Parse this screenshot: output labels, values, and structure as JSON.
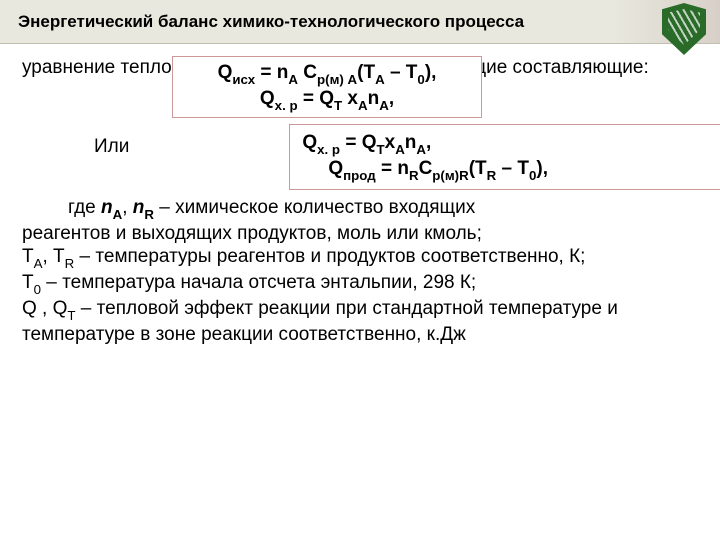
{
  "header": {
    "title": "Энергетический баланс химико-технологического процесса"
  },
  "intro": {
    "line": "уравнение теплового баланса будет иметь следующие составляющие:"
  },
  "eqbox1": {
    "line1_html": "Q<span class='sub'>исх</span> = n<span class='sub'>А</span> С<span class='sub'>р(м) А</span>(T<span class='sub'>А</span> – T<span class='sub'>0</span>),",
    "line2_html": "Q<span class='sub'>х. р</span> = Q<span class='sub'>T</span> x<span class='sub'>А</span>n<span class='sub'>А</span>,"
  },
  "or_label": "Или",
  "eqbox2": {
    "line1_html": "Q<span class='sub'>х. р</span> = Q<span class='sub'>T</span>x<span class='sub'>А</span>n<span class='sub'>А</span>,",
    "line2_html": "Q<span class='sub'>прод</span> = n<span class='sub'>R</span>С<span class='sub'>р(м)R</span>(T<span class='sub'>R</span> – T<span class='sub'>0</span>),"
  },
  "definitions": {
    "first_html": "где <span class='b ital'>n</span><span class='sub b'>А</span>, <span class='b ital'>n</span><span class='sub b'>R</span> – химическое количество входящих",
    "rest_html": "реагентов и выходящих продуктов, моль или кмоль;<br>T<span class='sub'>А</span>, T<span class='sub'>R</span> – температуры реагентов и продуктов соответственно, К;<br>T<span class='sub'>0</span> – температура начала отсчета энтальпии, 298 К;<br>Q , Q<span class='sub'>T</span> – тепловой эффект реакции при стандартной температуре и температуре в зоне реакции соответственно, к.Дж"
  },
  "style": {
    "header_bg": "#e8e8de",
    "box_border": "#cc9999",
    "logo_bg": "#2a6b2a"
  }
}
